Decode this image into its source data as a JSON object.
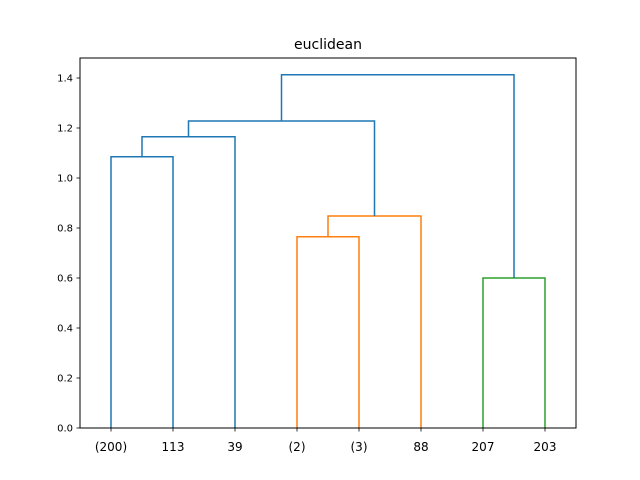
{
  "chart_data": {
    "type": "dendrogram",
    "title": "euclidean",
    "xlabel": "",
    "ylabel": "",
    "ylim": [
      0,
      1.48
    ],
    "yticks": [
      0.0,
      0.2,
      0.4,
      0.6,
      0.8,
      1.0,
      1.2,
      1.4
    ],
    "ytick_labels": [
      "0.0",
      "0.2",
      "0.4",
      "0.6",
      "0.8",
      "1.0",
      "1.2",
      "1.4"
    ],
    "grid": false,
    "leaves": [
      "(200)",
      "113",
      "39",
      "(2)",
      "(3)",
      "88",
      "207",
      "203"
    ],
    "links": [
      {
        "left": [
          0,
          0
        ],
        "right": [
          1,
          0
        ],
        "height": 1.085,
        "color": "#1f77b4"
      },
      {
        "left": [
          0.5,
          1.085
        ],
        "right": [
          2,
          0
        ],
        "height": 1.165,
        "color": "#1f77b4"
      },
      {
        "left": [
          3,
          0
        ],
        "right": [
          4,
          0
        ],
        "height": 0.765,
        "color": "#ff7f0e"
      },
      {
        "left": [
          3.5,
          0.765
        ],
        "right": [
          5,
          0
        ],
        "height": 0.848,
        "color": "#ff7f0e"
      },
      {
        "left": [
          1.25,
          1.165
        ],
        "right": [
          4.25,
          0.848
        ],
        "height": 1.228,
        "color": "#1f77b4"
      },
      {
        "left": [
          6,
          0
        ],
        "right": [
          7,
          0
        ],
        "height": 0.6,
        "color": "#2ca02c"
      },
      {
        "left": [
          2.75,
          1.228
        ],
        "right": [
          6.5,
          0.6
        ],
        "height": 1.413,
        "color": "#1f77b4"
      }
    ]
  }
}
